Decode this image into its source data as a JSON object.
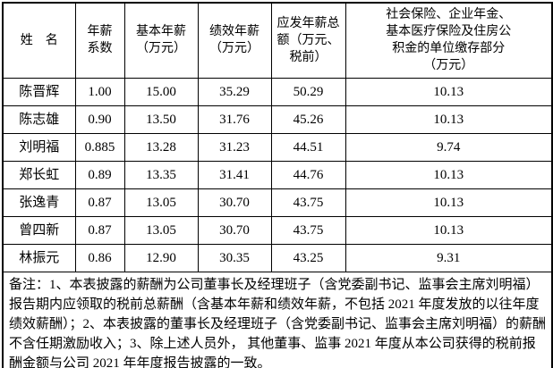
{
  "colors": {
    "border": "#000000",
    "background": "#ffffff",
    "text": "#000000"
  },
  "table": {
    "headers": [
      "姓　名",
      "年薪\n系数",
      "基本年薪\n（万元）",
      "绩效年薪\n（万元）",
      "应发年薪总\n额（万元、\n税前）",
      "社会保险、企业年金、\n基本医疗保险及住房公\n积金的单位缴存部分\n（万元）"
    ],
    "rows": [
      [
        "陈晋辉",
        "1.00",
        "15.00",
        "35.29",
        "50.29",
        "10.13"
      ],
      [
        "陈志雄",
        "0.90",
        "13.50",
        "31.76",
        "45.26",
        "10.13"
      ],
      [
        "刘明福",
        "0.885",
        "13.28",
        "31.23",
        "44.51",
        "9.74"
      ],
      [
        "郑长虹",
        "0.89",
        "13.35",
        "31.41",
        "44.76",
        "10.13"
      ],
      [
        "张逸青",
        "0.87",
        "13.05",
        "30.70",
        "43.75",
        "10.13"
      ],
      [
        "曾四新",
        "0.87",
        "13.05",
        "30.70",
        "43.75",
        "10.13"
      ],
      [
        "林振元",
        "0.86",
        "12.90",
        "30.35",
        "43.25",
        "9.31"
      ]
    ],
    "note": "备注：1、本表披露的薪酬为公司董事长及经理班子（含党委副书记、监事会主席刘明福）报告期内应领取的税前总薪酬（含基本年薪和绩效年薪，不包括 2021 年度发放的以往年度绩效薪酬）；2、本表披露的董事长及经理班子（含党委副书记、监事会主席刘明福）的薪酬不含任期激励收入；3、除上述人员外， 其他董事、监事 2021 年度从本公司获得的税前报酬金额与公司 2021 年年度报告披露的一致。"
  }
}
